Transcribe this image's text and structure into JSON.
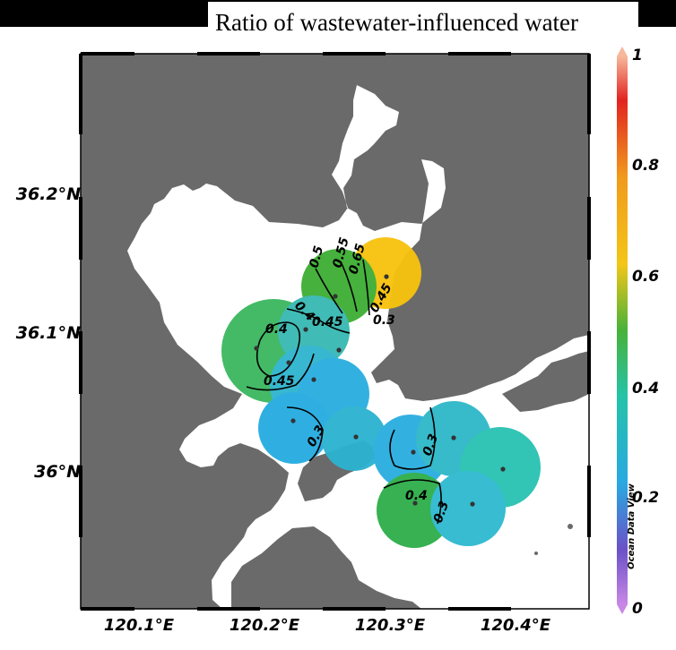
{
  "title": "Ratio of wastewater-influenced water",
  "latitude_labels": [
    "36.2°N",
    "36.1°N",
    "36°N"
  ],
  "longitude_labels": [
    "120.1°E",
    "120.2°E",
    "120.3°E",
    "120.4°E"
  ],
  "colorbar": {
    "ticks": [
      "1",
      "0.8",
      "0.6",
      "0.4",
      "0.2",
      "0"
    ],
    "colors": [
      "#f7b79a",
      "#e2231f",
      "#f6a11c",
      "#f2c617",
      "#2fa83a",
      "#25c3a8",
      "#28a8e2",
      "#6b51c7",
      "#c887e6"
    ]
  },
  "contour_labels": [
    "0.65",
    "0.55",
    "0.5",
    "0.45",
    "0.4",
    "0.45",
    "0.4",
    "0.45",
    "0.3",
    "0.3",
    "0.4",
    "0.3",
    "0.3"
  ],
  "credit": "Ocean Data View",
  "map_colors": {
    "land": "#6a6a6a",
    "sea": "#ffffff",
    "frame": "#000000"
  }
}
